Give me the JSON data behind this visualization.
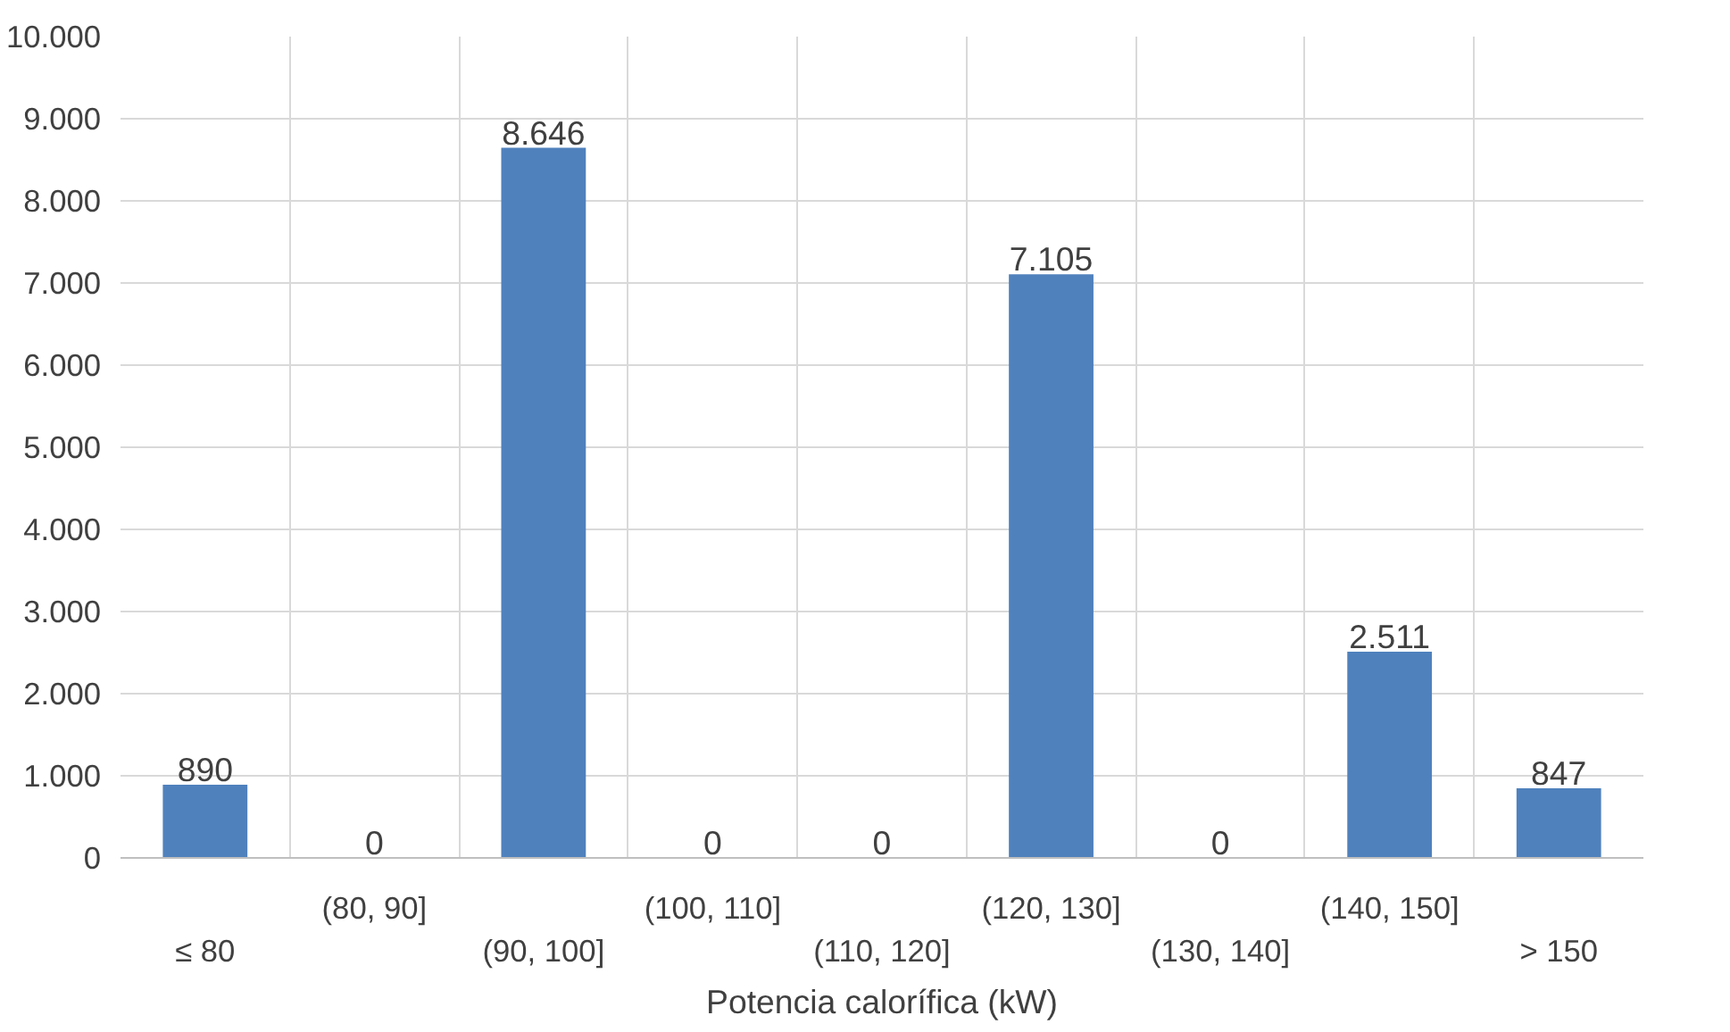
{
  "chart_data": {
    "type": "bar",
    "xlabel": "Potencia calorífica (kW)",
    "categories": [
      "≤ 80",
      "(80, 90]",
      "(90, 100]",
      "(100, 110]",
      "(110, 120]",
      "(120, 130]",
      "(130, 140]",
      "(140, 150]",
      "> 150"
    ],
    "values": [
      890,
      0,
      8646,
      0,
      0,
      7105,
      0,
      2511,
      847
    ],
    "value_labels": [
      "890",
      "0",
      "8.646",
      "0",
      "0",
      "7.105",
      "0",
      "2.511",
      "847"
    ],
    "color": "#4f81bd",
    "ylim": [
      0,
      10000
    ],
    "yticks": [
      {
        "value": 0,
        "label": "0"
      },
      {
        "value": 1000,
        "label": "1.000"
      },
      {
        "value": 2000,
        "label": "2.000"
      },
      {
        "value": 3000,
        "label": "3.000"
      },
      {
        "value": 4000,
        "label": "4.000"
      },
      {
        "value": 5000,
        "label": "5.000"
      },
      {
        "value": 6000,
        "label": "6.000"
      },
      {
        "value": 7000,
        "label": "7.000"
      },
      {
        "value": 8000,
        "label": "8.000"
      },
      {
        "value": 9000,
        "label": "9.000"
      },
      {
        "value": 10000,
        "label": "10.000"
      }
    ],
    "grid": true
  }
}
